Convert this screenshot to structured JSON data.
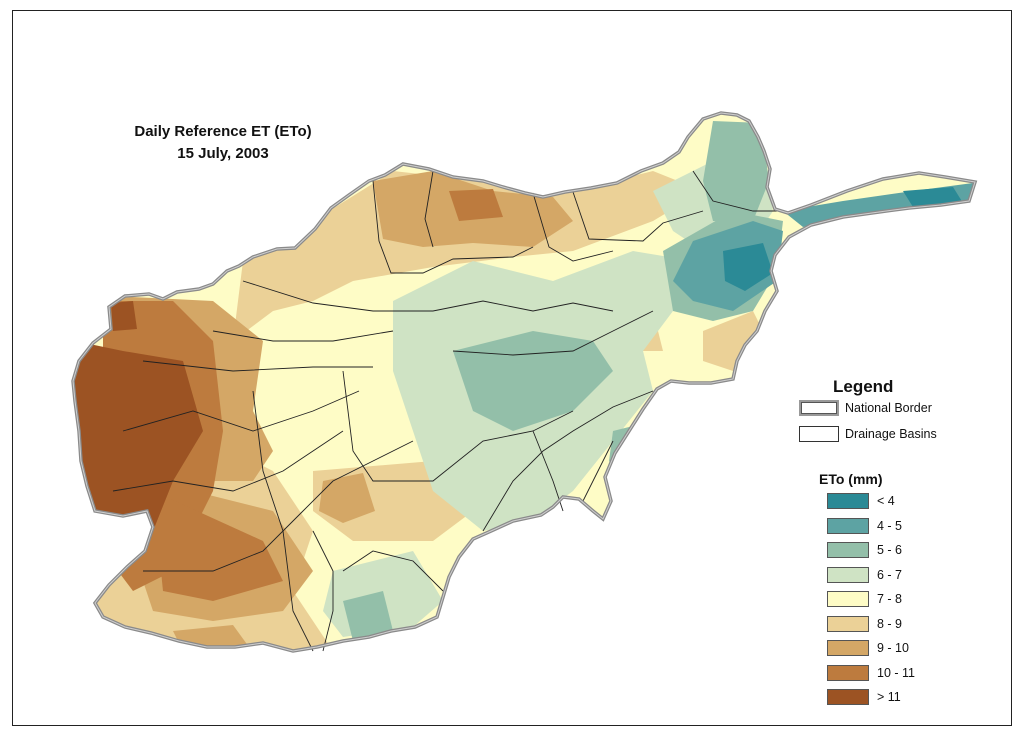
{
  "title": {
    "line1": "Daily Reference ET (ETo)",
    "line2": "15 July, 2003"
  },
  "legend": {
    "title": "Legend",
    "national_border_label": "National Border",
    "drainage_basins_label": "Drainage Basins",
    "border_color": "#9a9a9a",
    "basin_line_color": "#222222"
  },
  "eto_legend": {
    "title": "ETo  (mm)",
    "classes": [
      {
        "label": "< 4",
        "color": "#2b8a96"
      },
      {
        "label": "4 - 5",
        "color": "#5da3a3"
      },
      {
        "label": "5 - 6",
        "color": "#93bfa9"
      },
      {
        "label": "6 - 7",
        "color": "#cfe3c4"
      },
      {
        "label": "7 - 8",
        "color": "#fefcc6"
      },
      {
        "label": "8 - 9",
        "color": "#ebd197"
      },
      {
        "label": "9 - 10",
        "color": "#d4a766"
      },
      {
        "label": "10 - 11",
        "color": "#bd7b3e"
      },
      {
        "label": "> 11",
        "color": "#9c5323"
      }
    ]
  }
}
